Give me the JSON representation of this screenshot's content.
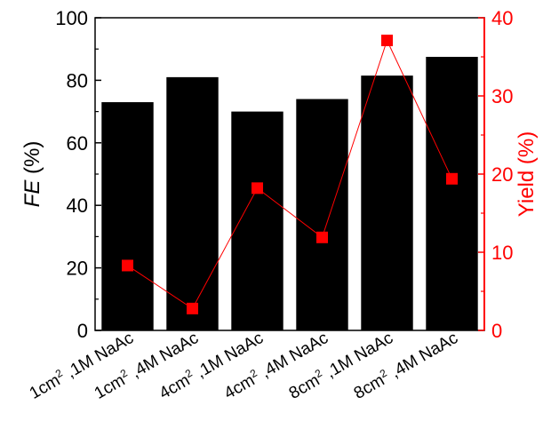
{
  "chart_data": {
    "type": "bar",
    "categories": [
      {
        "main": "1cm",
        "sup": "2",
        "rest": " ,1M NaAc"
      },
      {
        "main": "1cm",
        "sup": "2",
        "rest": " ,4M NaAc"
      },
      {
        "main": "4cm",
        "sup": "2",
        "rest": " ,1M NaAc"
      },
      {
        "main": "4cm",
        "sup": "2",
        "rest": " ,4M NaAc"
      },
      {
        "main": "8cm",
        "sup": "2",
        "rest": " ,1M NaAc"
      },
      {
        "main": "8cm",
        "sup": "2",
        "rest": " ,4M NaAc"
      }
    ],
    "series": [
      {
        "name": "FE",
        "type": "bar",
        "axis": "left",
        "color": "#000000",
        "values": [
          73,
          81,
          70,
          74,
          81.5,
          87.5
        ]
      },
      {
        "name": "Yield",
        "type": "line",
        "axis": "right",
        "color": "#ff0000",
        "marker": "square",
        "values": [
          8.3,
          2.8,
          18.2,
          11.9,
          37.1,
          19.4
        ]
      }
    ],
    "ylabel_left": {
      "italic": "FE",
      "rest": " (%)"
    },
    "ylabel_right": "Yield (%)",
    "ylim_left": [
      0,
      100
    ],
    "ylim_right": [
      0,
      40
    ],
    "yticks_left": [
      "0",
      "20",
      "40",
      "60",
      "80",
      "100"
    ],
    "yticks_right": [
      "0",
      "10",
      "20",
      "30",
      "40"
    ],
    "right_axis_color": "#ff0000",
    "grid": false
  }
}
